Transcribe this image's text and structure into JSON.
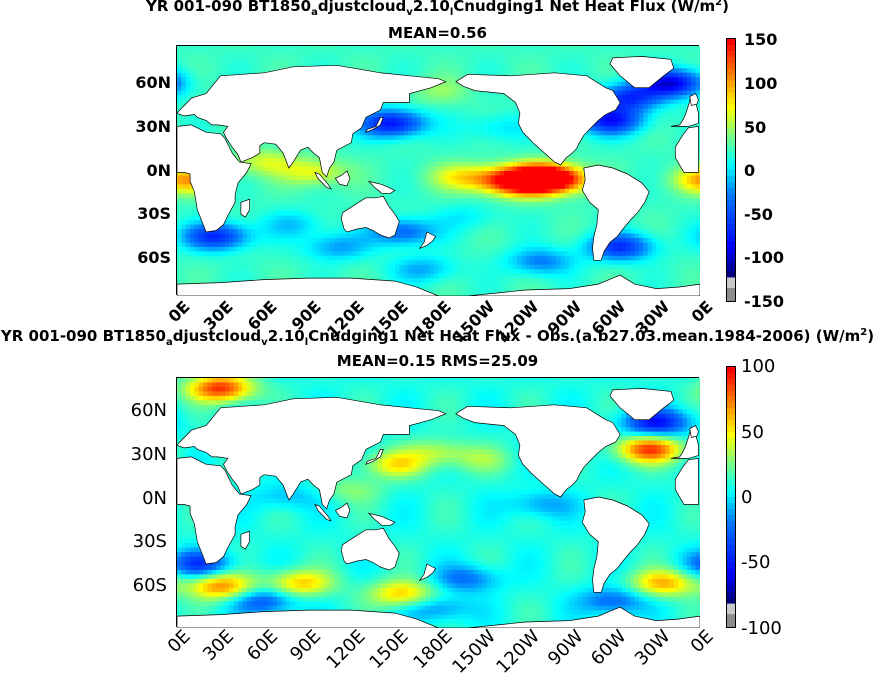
{
  "panels": [
    {
      "title_parts": [
        "YR 001-090 BT1850",
        "a",
        "djustcloud",
        "v",
        "2.10",
        "l",
        "Cnudging1  Net Heat Flux (W/m",
        "2",
        ")"
      ],
      "subtitle": "MEAN=0.56",
      "y_ticks": [
        "60N",
        "30N",
        "0N",
        "30S",
        "60S"
      ],
      "x_ticks": [
        "0E",
        "30E",
        "60E",
        "90E",
        "120E",
        "150E",
        "180E",
        "150W",
        "120W",
        "90W",
        "60W",
        "30W",
        "0E"
      ],
      "colorbar_ticks": [
        "150",
        "100",
        "50",
        "0",
        "-50",
        "-100",
        "-150"
      ],
      "colorbar_range": [
        -150,
        150
      ],
      "colorbar_extremes": [
        "#8c8c8c",
        "#ff0000"
      ]
    },
    {
      "title_parts": [
        "YR 001-090 BT1850",
        "a",
        "djustcloud",
        "v",
        "2.10",
        "l",
        "Cnudging1  Net Heat Flux - Obs.(a.b27.03.mean.1984-2006) (W/m",
        "2",
        ")"
      ],
      "subtitle": "MEAN=0.15 RMS=25.09",
      "y_ticks": [
        "60N",
        "30N",
        "0N",
        "30S",
        "60S"
      ],
      "x_ticks": [
        "0E",
        "30E",
        "60E",
        "90E",
        "120E",
        "150E",
        "180E",
        "150W",
        "120W",
        "90W",
        "60W",
        "30W",
        "0E"
      ],
      "colorbar_ticks": [
        "100",
        "50",
        "0",
        "-50",
        "-100"
      ],
      "colorbar_range": [
        -100,
        100
      ],
      "colorbar_extremes": [
        "#8c8c8c",
        "#ff0000"
      ]
    }
  ],
  "chart_data": [
    {
      "type": "heatmap",
      "title": "YR 001-090 BT1850adjustcloudv2.10lCnudging1  Net Heat Flux (W/m2)",
      "subtitle": "MEAN=0.56",
      "x_axis": {
        "ticks": [
          "0E",
          "30E",
          "60E",
          "90E",
          "120E",
          "150E",
          "180E",
          "150W",
          "120W",
          "90W",
          "60W",
          "30W",
          "0E"
        ],
        "range_deg_east": [
          0,
          360
        ]
      },
      "y_axis": {
        "ticks": [
          "60N",
          "30N",
          "0N",
          "30S",
          "60S"
        ],
        "range_deg_north": [
          -78,
          90
        ]
      },
      "value_range": [
        -150,
        150
      ],
      "colorbar_ticks": [
        150,
        100,
        50,
        0,
        -50,
        -100,
        -150
      ],
      "colormap": [
        "#00007f",
        "#0000ff",
        "#007fff",
        "#00ffff",
        "#7fff7f",
        "#ffff00",
        "#ff7f00",
        "#ff0000"
      ],
      "mean": 0.56,
      "grid": false
    },
    {
      "type": "heatmap",
      "title": "YR 001-090 BT1850adjustcloudv2.10lCnudging1  Net Heat Flux - Obs.(a.b27.03.mean.1984-2006) (W/m2)",
      "subtitle": "MEAN=0.15 RMS=25.09",
      "x_axis": {
        "ticks": [
          "0E",
          "30E",
          "60E",
          "90E",
          "120E",
          "150E",
          "180E",
          "150W",
          "120W",
          "90W",
          "60W",
          "30W",
          "0E"
        ],
        "range_deg_east": [
          0,
          360
        ]
      },
      "y_axis": {
        "ticks": [
          "60N",
          "30N",
          "0N",
          "30S",
          "60S"
        ],
        "range_deg_north": [
          -78,
          90
        ]
      },
      "value_range": [
        -100,
        100
      ],
      "colorbar_ticks": [
        100,
        50,
        0,
        -50,
        -100
      ],
      "colormap": [
        "#00007f",
        "#0000ff",
        "#007fff",
        "#00ffff",
        "#7fff7f",
        "#ffff00",
        "#ff7f00",
        "#ff0000"
      ],
      "mean": 0.15,
      "rms": 25.09,
      "grid": false
    }
  ],
  "field_features": [
    [
      {
        "lon": 250,
        "lat": 2,
        "v": 145
      },
      {
        "lon": 240,
        "lat": -2,
        "v": 110
      },
      {
        "lon": 265,
        "lat": 0,
        "v": 90
      },
      {
        "lon": 220,
        "lat": 0,
        "v": 70
      },
      {
        "lon": 195,
        "lat": 2,
        "v": 50
      },
      {
        "lon": 5,
        "lat": 0,
        "v": 90
      },
      {
        "lon": 95,
        "lat": 5,
        "v": 55
      },
      {
        "lon": 60,
        "lat": 12,
        "v": 45
      },
      {
        "lon": 148,
        "lat": 38,
        "v": -115
      },
      {
        "lon": 298,
        "lat": 40,
        "v": -110
      },
      {
        "lon": 310,
        "lat": 55,
        "v": -95
      },
      {
        "lon": 340,
        "lat": 65,
        "v": -130
      },
      {
        "lon": 27,
        "lat": -38,
        "v": -100
      },
      {
        "lon": 305,
        "lat": -45,
        "v": -95
      },
      {
        "lon": 155,
        "lat": -35,
        "v": -70
      },
      {
        "lon": 220,
        "lat": 35,
        "v": -25
      },
      {
        "lon": 200,
        "lat": -25,
        "v": -20
      },
      {
        "lon": 80,
        "lat": -30,
        "v": -30
      },
      {
        "lon": 110,
        "lat": -45,
        "v": -45
      },
      {
        "lon": 170,
        "lat": -60,
        "v": -40
      },
      {
        "lon": 250,
        "lat": -55,
        "v": -55
      },
      {
        "lon": 180,
        "lat": 60,
        "v": 25
      }
    ],
    [
      {
        "lon": 30,
        "lat": 83,
        "v": 90
      },
      {
        "lon": 325,
        "lat": 42,
        "v": 85
      },
      {
        "lon": 335,
        "lat": -48,
        "v": 60
      },
      {
        "lon": 30,
        "lat": -50,
        "v": 70
      },
      {
        "lon": 85,
        "lat": -48,
        "v": 55
      },
      {
        "lon": 155,
        "lat": -55,
        "v": 55
      },
      {
        "lon": 180,
        "lat": 40,
        "v": 30
      },
      {
        "lon": 210,
        "lat": 35,
        "v": 20
      },
      {
        "lon": 150,
        "lat": 32,
        "v": 45
      },
      {
        "lon": 250,
        "lat": 5,
        "v": -25
      },
      {
        "lon": 120,
        "lat": 15,
        "v": 20
      },
      {
        "lon": 330,
        "lat": 60,
        "v": -70
      },
      {
        "lon": 15,
        "lat": -35,
        "v": -55
      },
      {
        "lon": 60,
        "lat": -60,
        "v": -45
      },
      {
        "lon": 200,
        "lat": -45,
        "v": -35
      },
      {
        "lon": 300,
        "lat": -60,
        "v": -40
      },
      {
        "lon": 180,
        "lat": -65,
        "v": -30
      },
      {
        "lon": 75,
        "lat": 10,
        "v": -20
      }
    ]
  ],
  "landmasses": [
    {
      "name": "north-america",
      "pts": [
        [
          192,
          66
        ],
        [
          200,
          71
        ],
        [
          230,
          70
        ],
        [
          260,
          72
        ],
        [
          282,
          70
        ],
        [
          295,
          62
        ],
        [
          300,
          60
        ],
        [
          305,
          52
        ],
        [
          302,
          47
        ],
        [
          295,
          44
        ],
        [
          290,
          40
        ],
        [
          285,
          35
        ],
        [
          280,
          30
        ],
        [
          277,
          25
        ],
        [
          275,
          21
        ],
        [
          272,
          18
        ],
        [
          268,
          15
        ],
        [
          264,
          10
        ],
        [
          260,
          12
        ],
        [
          253,
          18
        ],
        [
          245,
          25
        ],
        [
          238,
          32
        ],
        [
          235,
          38
        ],
        [
          236,
          45
        ],
        [
          233,
          52
        ],
        [
          225,
          58
        ],
        [
          215,
          59
        ],
        [
          205,
          60
        ],
        [
          197,
          63
        ]
      ]
    },
    {
      "name": "greenland",
      "pts": [
        [
          300,
          82
        ],
        [
          320,
          83
        ],
        [
          340,
          81
        ],
        [
          342,
          75
        ],
        [
          335,
          70
        ],
        [
          325,
          62
        ],
        [
          315,
          62
        ],
        [
          305,
          70
        ],
        [
          298,
          78
        ]
      ]
    },
    {
      "name": "south-america",
      "pts": [
        [
          280,
          8
        ],
        [
          290,
          10
        ],
        [
          300,
          8
        ],
        [
          310,
          4
        ],
        [
          320,
          -2
        ],
        [
          325,
          -8
        ],
        [
          322,
          -15
        ],
        [
          317,
          -22
        ],
        [
          312,
          -27
        ],
        [
          307,
          -33
        ],
        [
          303,
          -38
        ],
        [
          298,
          -42
        ],
        [
          294,
          -48
        ],
        [
          292,
          -54
        ],
        [
          287,
          -54
        ],
        [
          286,
          -46
        ],
        [
          287,
          -38
        ],
        [
          289,
          -30
        ],
        [
          290,
          -20
        ],
        [
          284,
          -15
        ],
        [
          279,
          -7
        ],
        [
          281,
          0
        ]
      ]
    },
    {
      "name": "eurasia",
      "pts": [
        [
          0,
          45
        ],
        [
          10,
          55
        ],
        [
          20,
          58
        ],
        [
          30,
          70
        ],
        [
          60,
          72
        ],
        [
          80,
          76
        ],
        [
          110,
          77
        ],
        [
          140,
          72
        ],
        [
          160,
          70
        ],
        [
          180,
          68
        ],
        [
          185,
          66
        ],
        [
          175,
          62
        ],
        [
          160,
          58
        ],
        [
          160,
          52
        ],
        [
          142,
          52
        ],
        [
          140,
          47
        ],
        [
          130,
          42
        ],
        [
          127,
          35
        ],
        [
          121,
          31
        ],
        [
          120,
          25
        ],
        [
          110,
          20
        ],
        [
          108,
          12
        ],
        [
          105,
          8
        ],
        [
          103,
          2
        ],
        [
          100,
          5
        ],
        [
          98,
          15
        ],
        [
          94,
          18
        ],
        [
          90,
          22
        ],
        [
          85,
          20
        ],
        [
          80,
          12
        ],
        [
          77,
          8
        ],
        [
          73,
          18
        ],
        [
          68,
          24
        ],
        [
          60,
          25
        ],
        [
          57,
          23
        ],
        [
          57,
          18
        ],
        [
          52,
          15
        ],
        [
          44,
          12
        ],
        [
          42,
          17
        ],
        [
          38,
          22
        ],
        [
          34,
          28
        ],
        [
          32,
          32
        ],
        [
          35,
          36
        ],
        [
          28,
          37
        ],
        [
          24,
          37
        ],
        [
          20,
          40
        ],
        [
          14,
          42
        ],
        [
          12,
          44
        ],
        [
          5,
          43
        ],
        [
          2,
          44
        ]
      ]
    },
    {
      "name": "eurasia-west",
      "pts": [
        [
          340,
          36
        ],
        [
          352,
          36
        ],
        [
          359,
          38
        ],
        [
          359,
          45
        ],
        [
          357,
          52
        ],
        [
          354,
          57
        ],
        [
          352,
          50
        ],
        [
          350,
          44
        ],
        [
          348,
          40
        ],
        [
          346,
          37
        ]
      ]
    },
    {
      "name": "africa",
      "pts": [
        [
          0,
          36
        ],
        [
          10,
          37
        ],
        [
          20,
          32
        ],
        [
          30,
          31
        ],
        [
          33,
          28
        ],
        [
          38,
          18
        ],
        [
          43,
          12
        ],
        [
          51,
          11
        ],
        [
          48,
          5
        ],
        [
          42,
          -2
        ],
        [
          40,
          -10
        ],
        [
          40,
          -15
        ],
        [
          35,
          -24
        ],
        [
          32,
          -30
        ],
        [
          27,
          -34
        ],
        [
          20,
          -35
        ],
        [
          18,
          -30
        ],
        [
          14,
          -20
        ],
        [
          12,
          -8
        ],
        [
          9,
          -1
        ],
        [
          9,
          4
        ],
        [
          5,
          5
        ],
        [
          0,
          5
        ]
      ]
    },
    {
      "name": "africa-west",
      "pts": [
        [
          343,
          15
        ],
        [
          349,
          5
        ],
        [
          355,
          5
        ],
        [
          359,
          5
        ],
        [
          359,
          36
        ],
        [
          352,
          35
        ],
        [
          348,
          30
        ],
        [
          343,
          22
        ]
      ]
    },
    {
      "name": "australia",
      "pts": [
        [
          114,
          -22
        ],
        [
          122,
          -17
        ],
        [
          130,
          -12
        ],
        [
          137,
          -12
        ],
        [
          142,
          -11
        ],
        [
          146,
          -18
        ],
        [
          150,
          -23
        ],
        [
          153,
          -28
        ],
        [
          150,
          -37
        ],
        [
          146,
          -39
        ],
        [
          140,
          -37
        ],
        [
          135,
          -34
        ],
        [
          130,
          -32
        ],
        [
          124,
          -33
        ],
        [
          117,
          -35
        ],
        [
          115,
          -33
        ],
        [
          113,
          -26
        ]
      ]
    },
    {
      "name": "antarctica",
      "pts": [
        [
          0,
          -70
        ],
        [
          30,
          -69
        ],
        [
          60,
          -67
        ],
        [
          90,
          -66
        ],
        [
          120,
          -66
        ],
        [
          150,
          -68
        ],
        [
          165,
          -72
        ],
        [
          180,
          -78
        ],
        [
          200,
          -78
        ],
        [
          240,
          -74
        ],
        [
          270,
          -73
        ],
        [
          290,
          -70
        ],
        [
          300,
          -66
        ],
        [
          305,
          -64
        ],
        [
          315,
          -70
        ],
        [
          330,
          -73
        ],
        [
          345,
          -72
        ],
        [
          360,
          -70
        ],
        [
          360,
          -78
        ],
        [
          0,
          -78
        ]
      ]
    },
    {
      "name": "madagascar",
      "pts": [
        [
          44,
          -15
        ],
        [
          50,
          -13
        ],
        [
          50,
          -20
        ],
        [
          47,
          -25
        ],
        [
          44,
          -23
        ]
      ]
    },
    {
      "name": "borneo",
      "pts": [
        [
          109,
          1
        ],
        [
          112,
          -3
        ],
        [
          117,
          -4
        ],
        [
          119,
          1
        ],
        [
          117,
          6
        ],
        [
          113,
          3
        ]
      ]
    },
    {
      "name": "sumatra",
      "pts": [
        [
          95,
          5
        ],
        [
          98,
          4
        ],
        [
          104,
          -3
        ],
        [
          106,
          -6
        ],
        [
          103,
          -5
        ],
        [
          97,
          1
        ]
      ]
    },
    {
      "name": "new-guinea",
      "pts": [
        [
          132,
          -1
        ],
        [
          141,
          -3
        ],
        [
          150,
          -7
        ],
        [
          147,
          -9
        ],
        [
          141,
          -9
        ],
        [
          136,
          -5
        ]
      ]
    },
    {
      "name": "japan",
      "pts": [
        [
          130,
          32
        ],
        [
          135,
          34
        ],
        [
          140,
          37
        ],
        [
          142,
          42
        ],
        [
          140,
          42
        ],
        [
          137,
          36
        ],
        [
          131,
          34
        ]
      ]
    },
    {
      "name": "uk",
      "pts": [
        [
          354,
          50
        ],
        [
          358,
          51
        ],
        [
          359,
          54
        ],
        [
          357,
          58
        ],
        [
          353,
          56
        ]
      ]
    },
    {
      "name": "new-zealand",
      "pts": [
        [
          172,
          -35
        ],
        [
          178,
          -38
        ],
        [
          176,
          -41
        ],
        [
          172,
          -44
        ],
        [
          167,
          -46
        ],
        [
          170,
          -42
        ]
      ]
    }
  ]
}
